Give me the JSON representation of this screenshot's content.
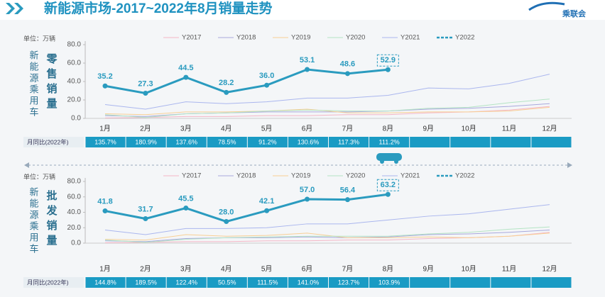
{
  "header": {
    "title": "新能源市场-2017~2022年8月销量走势",
    "logo": "乘联会"
  },
  "chart_data": [
    {
      "type": "line",
      "unit": "单位：万辆",
      "side_label": "新能源乘用车",
      "sub_label": "零售销量",
      "categories": [
        "1月",
        "2月",
        "3月",
        "4月",
        "5月",
        "6月",
        "7月",
        "8月",
        "9月",
        "10月",
        "11月",
        "12月"
      ],
      "ylim": [
        0,
        80
      ],
      "yticks": [
        {
          "value": 0,
          "label": "0.0"
        },
        {
          "value": 20,
          "label": "20.0"
        },
        {
          "value": 40,
          "label": "40.0"
        },
        {
          "value": 60,
          "label": "60.0"
        },
        {
          "value": 80,
          "label": "80.0"
        }
      ],
      "series": [
        {
          "name": "Y2017",
          "color": "#f4b6c6",
          "values": [
            0.5,
            1,
            2,
            2,
            3,
            3,
            4,
            4,
            6,
            7,
            9,
            13
          ]
        },
        {
          "name": "Y2018",
          "color": "#a8a8dc",
          "values": [
            3,
            2,
            5,
            6,
            7,
            7,
            7,
            8,
            10,
            11,
            13,
            16
          ]
        },
        {
          "name": "Y2019",
          "color": "#f8cf94",
          "values": [
            5,
            4,
            7,
            7,
            8,
            10,
            6,
            6,
            7,
            7,
            8,
            12
          ]
        },
        {
          "name": "Y2020",
          "color": "#b4e4c4",
          "values": [
            4,
            1,
            5,
            6,
            8,
            9,
            8,
            8,
            11,
            12,
            17,
            21
          ]
        },
        {
          "name": "Y2021",
          "color": "#aab6ee",
          "values": [
            15,
            10,
            18,
            16,
            18,
            22,
            22,
            25,
            33,
            32,
            38,
            48
          ]
        },
        {
          "name": "Y2022",
          "color": "#2a9bbf",
          "values": [
            35.2,
            27.3,
            44.5,
            28.2,
            36.0,
            53.1,
            48.6,
            52.9,
            null,
            null,
            null,
            null
          ],
          "value_labels": [
            "35.2",
            "27.3",
            "44.5",
            "28.2",
            "36.0",
            "53.1",
            "48.6",
            "52.9",
            null,
            null,
            null,
            null
          ]
        }
      ],
      "yoy": {
        "label": "月同比(2022年)",
        "values": [
          "135.7%",
          "180.9%",
          "137.6%",
          "78.5%",
          "91.2%",
          "130.6%",
          "117.3%",
          "111.2%",
          null,
          null,
          null,
          null
        ]
      }
    },
    {
      "type": "line",
      "unit": "单位：万辆",
      "side_label": "新能源乘用车",
      "sub_label": "批发销量",
      "categories": [
        "1月",
        "2月",
        "3月",
        "4月",
        "5月",
        "6月",
        "7月",
        "8月",
        "9月",
        "10月",
        "11月",
        "12月"
      ],
      "ylim": [
        0,
        80
      ],
      "yticks": [
        {
          "value": 0,
          "label": "0.0"
        },
        {
          "value": 20,
          "label": "20.0"
        },
        {
          "value": 40,
          "label": "40.0"
        },
        {
          "value": 60,
          "label": "60.0"
        },
        {
          "value": 80,
          "label": "80.0"
        }
      ],
      "series": [
        {
          "name": "Y2017",
          "color": "#f4b6c6",
          "values": [
            0.5,
            1,
            2,
            2,
            3,
            3,
            4,
            4,
            6,
            7,
            9,
            14
          ]
        },
        {
          "name": "Y2018",
          "color": "#a8a8dc",
          "values": [
            3,
            2,
            6,
            7,
            7,
            8,
            7,
            8,
            11,
            12,
            14,
            17
          ]
        },
        {
          "name": "Y2019",
          "color": "#f8cf94",
          "values": [
            5,
            4,
            11,
            9,
            10,
            13,
            7,
            7,
            8,
            7,
            9,
            13
          ]
        },
        {
          "name": "Y2020",
          "color": "#b4e4c4",
          "values": [
            4,
            1,
            5,
            7,
            8,
            9,
            9,
            9,
            12,
            14,
            18,
            21
          ]
        },
        {
          "name": "Y2021",
          "color": "#aab6ee",
          "values": [
            17,
            11,
            19,
            19,
            20,
            25,
            25,
            30,
            35,
            38,
            44,
            50
          ]
        },
        {
          "name": "Y2022",
          "color": "#2a9bbf",
          "values": [
            41.8,
            31.7,
            45.5,
            28.0,
            42.1,
            57.0,
            56.4,
            63.2,
            null,
            null,
            null,
            null
          ],
          "value_labels": [
            "41.8",
            "31.7",
            "45.5",
            "28.0",
            "42.1",
            "57.0",
            "56.4",
            "63.2",
            null,
            null,
            null,
            null
          ]
        }
      ],
      "yoy": {
        "label": "月同比(2022年)",
        "values": [
          "144.8%",
          "189.5%",
          "122.4%",
          "50.5%",
          "111.5%",
          "141.0%",
          "123.7%",
          "103.9%",
          null,
          null,
          null,
          null
        ]
      }
    }
  ]
}
